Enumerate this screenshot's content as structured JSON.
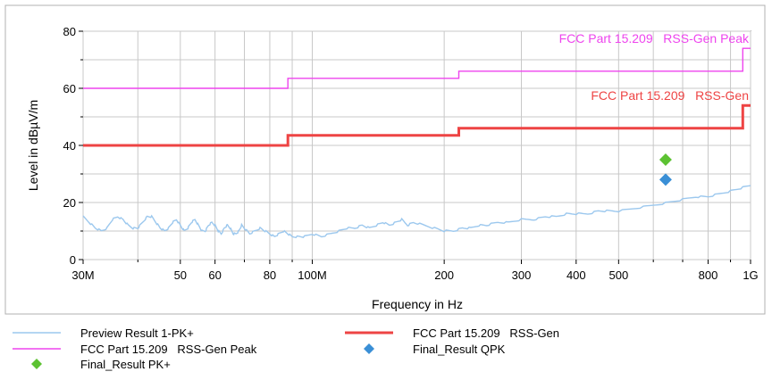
{
  "chart_data": {
    "type": "line",
    "xlabel": "Frequency in Hz",
    "ylabel": "Level in dBµV/m",
    "x_scale": "log",
    "xlim": [
      30000000,
      1000000000
    ],
    "ylim": [
      0,
      80
    ],
    "grid": true,
    "x_ticks": [
      {
        "value": 30000000,
        "label": "30M"
      },
      {
        "value": 50000000,
        "label": "50"
      },
      {
        "value": 60000000,
        "label": "60"
      },
      {
        "value": 80000000,
        "label": "80"
      },
      {
        "value": 100000000,
        "label": "100M"
      },
      {
        "value": 200000000,
        "label": "200"
      },
      {
        "value": 300000000,
        "label": "300"
      },
      {
        "value": 400000000,
        "label": "400"
      },
      {
        "value": 500000000,
        "label": "500"
      },
      {
        "value": 800000000,
        "label": "800"
      },
      {
        "value": 1000000000,
        "label": "1G"
      }
    ],
    "y_ticks": [
      {
        "value": 0,
        "label": "0"
      },
      {
        "value": 20,
        "label": "20"
      },
      {
        "value": 40,
        "label": "40"
      },
      {
        "value": 60,
        "label": "60"
      },
      {
        "value": 80,
        "label": "80"
      }
    ],
    "series": [
      {
        "name": "Preview Result 1-PK+",
        "kind": "line",
        "color": "#9cc8ee",
        "x": [
          30000000,
          31000000,
          32000000,
          33000000,
          34000000,
          35000000,
          36000000,
          37000000,
          38000000,
          39000000,
          40000000,
          41000000,
          42000000,
          43000000,
          44000000,
          45000000,
          46000000,
          47000000,
          48000000,
          49000000,
          50000000,
          51000000,
          52000000,
          53000000,
          54000000,
          55000000,
          56000000,
          57000000,
          58000000,
          59000000,
          60000000,
          61000000,
          62000000,
          63000000,
          64000000,
          65000000,
          66000000,
          67000000,
          68000000,
          69000000,
          70000000,
          72000000,
          74000000,
          76000000,
          78000000,
          80000000,
          82000000,
          84000000,
          86000000,
          88000000,
          90000000,
          93000000,
          96000000,
          100000000,
          105000000,
          110000000,
          115000000,
          120000000,
          125000000,
          130000000,
          135000000,
          140000000,
          145000000,
          150000000,
          155000000,
          160000000,
          165000000,
          170000000,
          180000000,
          190000000,
          200000000,
          210000000,
          220000000,
          230000000,
          240000000,
          250000000,
          265000000,
          280000000,
          300000000,
          320000000,
          340000000,
          360000000,
          380000000,
          400000000,
          425000000,
          450000000,
          475000000,
          500000000,
          550000000,
          600000000,
          650000000,
          700000000,
          750000000,
          800000000,
          850000000,
          900000000,
          950000000,
          1000000000
        ],
        "y": [
          15,
          13,
          11,
          10,
          11,
          14,
          15,
          14,
          12,
          11,
          11,
          13,
          15,
          15,
          13,
          11,
          10,
          11,
          13,
          14,
          12,
          10,
          11,
          13,
          14,
          12,
          10,
          10,
          12,
          13,
          12,
          10,
          9,
          11,
          12,
          11,
          9,
          9,
          10,
          12,
          11,
          9,
          10,
          11,
          10,
          9,
          8,
          9,
          10,
          9,
          8,
          8,
          8,
          9,
          8,
          9,
          10,
          11,
          11,
          12,
          11,
          12,
          13,
          12,
          13,
          14,
          12,
          13,
          12,
          11,
          10,
          10,
          11,
          11,
          12,
          12,
          13,
          13,
          14,
          14,
          15,
          15,
          16,
          16,
          16,
          17,
          17,
          17,
          18,
          19,
          20,
          21,
          22,
          22,
          23,
          24,
          25,
          26
        ]
      },
      {
        "name": "FCC Part 15.209   RSS-Gen",
        "kind": "step",
        "color": "#ee4444",
        "x": [
          30000000,
          88000000,
          88000000,
          216000000,
          216000000,
          960000000,
          960000000,
          1000000000
        ],
        "y": [
          40,
          40,
          43.5,
          43.5,
          46,
          46,
          54,
          54
        ]
      },
      {
        "name": "FCC Part 15.209   RSS-Gen Peak",
        "kind": "step",
        "color": "#ee44ee",
        "x": [
          30000000,
          88000000,
          88000000,
          216000000,
          216000000,
          960000000,
          960000000,
          1000000000
        ],
        "y": [
          60,
          60,
          63.5,
          63.5,
          66,
          66,
          74,
          74
        ]
      },
      {
        "name": "Final_Result QPK",
        "kind": "marker",
        "color": "#3a8fd6",
        "x": [
          640000000
        ],
        "y": [
          28
        ]
      },
      {
        "name": "Final_Result PK+",
        "kind": "marker",
        "color": "#5cc232",
        "x": [
          640000000
        ],
        "y": [
          35
        ]
      }
    ],
    "limit_labels": [
      {
        "text": "FCC Part 15.209   RSS-Gen",
        "color": "#ee4444"
      },
      {
        "text": "FCC Part 15.209   RSS-Gen Peak",
        "color": "#ee44ee"
      }
    ],
    "legend": {
      "placement": "bottom",
      "items": [
        {
          "label": "Preview Result 1-PK+",
          "symbol": "line",
          "color": "#9cc8ee"
        },
        {
          "label": "FCC Part 15.209   RSS-Gen",
          "symbol": "thick-line",
          "color": "#ee4444"
        },
        {
          "label": "FCC Part 15.209   RSS-Gen Peak",
          "symbol": "line",
          "color": "#ee44ee"
        },
        {
          "label": "Final_Result QPK",
          "symbol": "diamond",
          "color": "#3a8fd6"
        },
        {
          "label": "Final_Result PK+",
          "symbol": "diamond",
          "color": "#5cc232"
        }
      ]
    }
  }
}
